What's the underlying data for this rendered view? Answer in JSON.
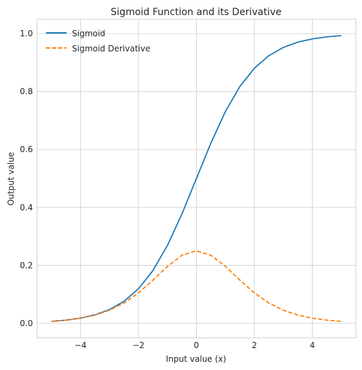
{
  "chart_data": {
    "type": "line",
    "title": "Sigmoid Function and its Derivative",
    "xlabel": "Input value (x)",
    "ylabel": "Output value",
    "xlim": [
      -5.5,
      5.5
    ],
    "ylim": [
      -0.05,
      1.05
    ],
    "x_ticks": [
      -4,
      -2,
      0,
      2,
      4
    ],
    "x_tick_labels": [
      "−4",
      "−2",
      "0",
      "2",
      "4"
    ],
    "y_ticks": [
      0.0,
      0.2,
      0.4,
      0.6,
      0.8,
      1.0
    ],
    "y_tick_labels": [
      "0.0",
      "0.2",
      "0.4",
      "0.6",
      "0.8",
      "1.0"
    ],
    "grid": true,
    "legend_position": "top-left",
    "series": [
      {
        "name": "Sigmoid",
        "color": "#1f77b4",
        "style": "solid",
        "x": [
          -5,
          -4.5,
          -4,
          -3.5,
          -3,
          -2.5,
          -2,
          -1.5,
          -1,
          -0.5,
          0,
          0.5,
          1,
          1.5,
          2,
          2.5,
          3,
          3.5,
          4,
          4.5,
          5
        ],
        "y": [
          0.0067,
          0.011,
          0.018,
          0.0293,
          0.0474,
          0.0759,
          0.1192,
          0.1824,
          0.2689,
          0.3775,
          0.5,
          0.6225,
          0.7311,
          0.8176,
          0.8808,
          0.9241,
          0.9526,
          0.9707,
          0.982,
          0.989,
          0.9933
        ]
      },
      {
        "name": "Sigmoid Derivative",
        "color": "#ff7f0e",
        "style": "dashed",
        "x": [
          -5,
          -4.5,
          -4,
          -3.5,
          -3,
          -2.5,
          -2,
          -1.5,
          -1,
          -0.5,
          0,
          0.5,
          1,
          1.5,
          2,
          2.5,
          3,
          3.5,
          4,
          4.5,
          5
        ],
        "y": [
          0.0066,
          0.0109,
          0.0177,
          0.0285,
          0.0452,
          0.0701,
          0.105,
          0.1491,
          0.1966,
          0.235,
          0.25,
          0.235,
          0.1966,
          0.1491,
          0.105,
          0.0701,
          0.0452,
          0.0285,
          0.0177,
          0.0109,
          0.0066
        ]
      }
    ]
  }
}
